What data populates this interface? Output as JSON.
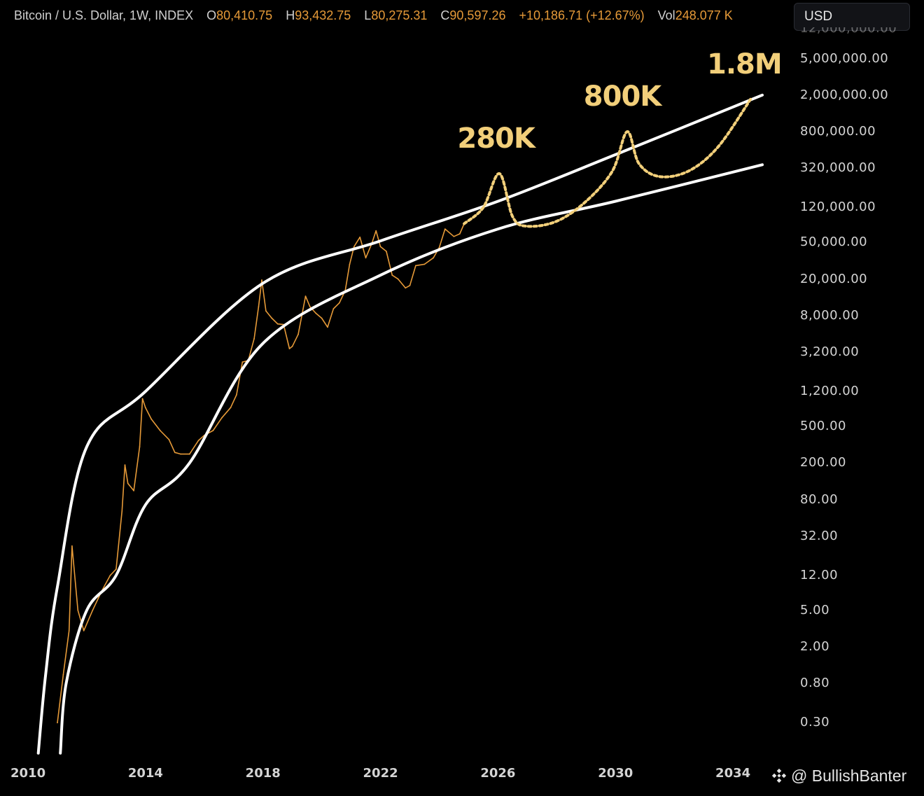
{
  "header": {
    "symbol": "Bitcoin / U.S. Dollar, 1W, INDEX",
    "open_label": "O",
    "open_value": "80,410.75",
    "high_label": "H",
    "high_value": "93,432.75",
    "low_label": "L",
    "low_value": "80,275.31",
    "close_label": "C",
    "close_value": "90,597.26",
    "change": "+10,186.71 (+12.67%)",
    "vol_label": "Vol",
    "vol_value": "248.077",
    "vol_unit": "K"
  },
  "currency_button": "USD",
  "watermark": {
    "icon": "binance-diamond-icon",
    "text": "@ BullishBanter"
  },
  "colors": {
    "background": "#000000",
    "price": "#e69a38",
    "band": "#ffffff",
    "projection": "#f2cf7a"
  },
  "chart_data": {
    "type": "line",
    "title": "",
    "xlabel": "",
    "ylabel": "",
    "y_scale": "log",
    "grid": false,
    "x_ticks": [
      "2010",
      "2014",
      "2018",
      "2022",
      "2026",
      "2030",
      "2034"
    ],
    "y_ticks": [
      "12,000,000.00",
      "5,000,000.00",
      "2,000,000.00",
      "800,000.00",
      "320,000.00",
      "120,000.00",
      "50,000.00",
      "20,000.00",
      "8,000.00",
      "3,200.00",
      "1,200.00",
      "500.00",
      "200.00",
      "80.00",
      "32.00",
      "12.00",
      "5.00",
      "2.00",
      "0.80",
      "0.30"
    ],
    "xlim": [
      2010,
      2035.5
    ],
    "ylim": [
      0.13,
      10000000
    ],
    "series": [
      {
        "type": "line",
        "x": [
          2011.0,
          2011.2,
          2011.4,
          2011.5,
          2011.7,
          2011.9,
          2012.2,
          2012.5,
          2012.8,
          2013.0,
          2013.2,
          2013.3,
          2013.4,
          2013.6,
          2013.8,
          2013.9,
          2014.0,
          2014.2,
          2014.5,
          2014.8,
          2015.0,
          2015.2,
          2015.5,
          2015.8,
          2016.0,
          2016.3,
          2016.6,
          2016.9,
          2017.1,
          2017.3,
          2017.5,
          2017.7,
          2017.85,
          2017.96,
          2018.1,
          2018.3,
          2018.5,
          2018.7,
          2018.9,
          2019.0,
          2019.2,
          2019.45,
          2019.6,
          2019.8,
          2020.0,
          2020.2,
          2020.4,
          2020.6,
          2020.8,
          2020.95,
          2021.1,
          2021.3,
          2021.5,
          2021.7,
          2021.85,
          2022.0,
          2022.2,
          2022.4,
          2022.6,
          2022.85,
          2023.0,
          2023.2,
          2023.5,
          2023.8,
          2024.0,
          2024.2,
          2024.5,
          2024.7,
          2024.85
        ],
        "values": [
          0.3,
          1.0,
          3.0,
          25,
          5,
          3,
          5,
          8,
          12,
          14,
          60,
          190,
          120,
          100,
          300,
          1000,
          800,
          600,
          450,
          360,
          260,
          250,
          250,
          350,
          400,
          450,
          620,
          800,
          1100,
          2500,
          2600,
          4500,
          10000,
          19500,
          9000,
          7500,
          6500,
          6400,
          3500,
          3700,
          5000,
          13000,
          10000,
          8500,
          7500,
          6000,
          9500,
          11000,
          15000,
          29000,
          45000,
          57000,
          34000,
          48000,
          67000,
          45000,
          40000,
          22000,
          20000,
          16000,
          17000,
          28000,
          29000,
          34000,
          44000,
          70000,
          58000,
          62000,
          80000
        ]
      },
      {
        "type": "line",
        "name": "",
        "x": [
          2010.35,
          2010.6,
          2011.0,
          2012.0,
          2014.0,
          2018.0,
          2022.0,
          2026.0,
          2030.0,
          2035.0
        ],
        "values": [
          0.14,
          1.0,
          9,
          300,
          1200,
          18000,
          52000,
          140000,
          450000,
          2000000
        ]
      },
      {
        "type": "line",
        "name": "",
        "x": [
          2011.1,
          2011.3,
          2012.0,
          2013.0,
          2014.0,
          2015.5,
          2018.0,
          2022.0,
          2026.0,
          2030.0,
          2035.0
        ],
        "values": [
          0.14,
          0.8,
          5,
          12,
          70,
          200,
          4000,
          22000,
          70000,
          140000,
          350000
        ]
      },
      {
        "type": "line",
        "name": "projection",
        "x": [
          2024.85,
          2025.5,
          2026.05,
          2026.5,
          2027.0,
          2028.0,
          2029.0,
          2029.9,
          2030.4,
          2030.8,
          2031.5,
          2032.5,
          2033.5,
          2034.6
        ],
        "values": [
          80000,
          120000,
          280000,
          95000,
          75000,
          85000,
          140000,
          300000,
          800000,
          360000,
          260000,
          300000,
          550000,
          1800000
        ]
      }
    ],
    "annotations": [
      {
        "label": "280K",
        "x": 2026.0,
        "value": 280000
      },
      {
        "label": "800K",
        "x": 2030.3,
        "value": 800000
      },
      {
        "label": "1.8M",
        "x": 2034.5,
        "value": 1800000
      }
    ]
  }
}
